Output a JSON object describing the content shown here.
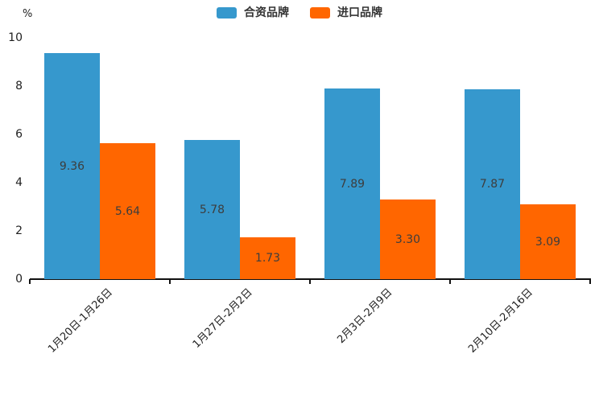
{
  "chart_data": {
    "type": "bar",
    "title": "",
    "categories": [
      "1月20日-1月26日",
      "1月27日-2月2日",
      "2月3日-2月9日",
      "2月10日-2月16日"
    ],
    "series": [
      {
        "name": "合资品牌",
        "color": "#3698cd",
        "values": [
          9.36,
          5.78,
          7.89,
          7.87
        ],
        "labels": [
          "9.36",
          "5.78",
          "7.89",
          "7.87"
        ]
      },
      {
        "name": "进口品牌",
        "color": "#ff6600",
        "values": [
          5.64,
          1.73,
          3.3,
          3.09
        ],
        "labels": [
          "5.64",
          "1.73",
          "3.30",
          "3.09"
        ]
      }
    ],
    "xlabel": "",
    "ylabel": "%",
    "ylim": [
      0,
      10
    ],
    "yticks": [
      0,
      2,
      4,
      6,
      8,
      10
    ],
    "grid": false,
    "legend_position": "top",
    "xtick_rotation_deg": 45,
    "value_label_position": "inside-center"
  }
}
